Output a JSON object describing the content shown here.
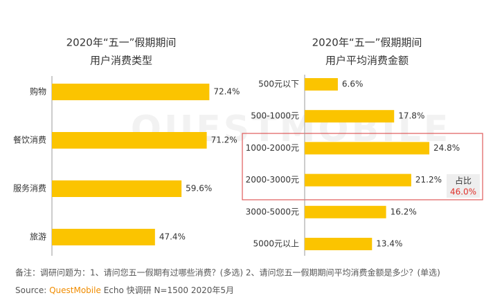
{
  "chart_data": [
    {
      "type": "bar",
      "title": "2020年“五一”假期期间",
      "subtitle": "用户消费类型",
      "categories": [
        "购物",
        "餐饮消费",
        "服务消费",
        "旅游"
      ],
      "values": [
        72.4,
        71.2,
        59.6,
        47.4
      ],
      "value_labels": [
        "72.4%",
        "71.2%",
        "59.6%",
        "47.4%"
      ],
      "color": "#fbc400"
    },
    {
      "type": "bar",
      "title": "2020年“五一”假期期间",
      "subtitle": "用户平均消费金额",
      "categories": [
        "500元以下",
        "500-1000元",
        "1000-2000元",
        "2000-3000元",
        "3000-5000元",
        "5000元以上"
      ],
      "values": [
        6.6,
        17.8,
        24.8,
        21.2,
        16.2,
        13.4
      ],
      "value_labels": [
        "6.6%",
        "17.8%",
        "24.8%",
        "21.2%",
        "16.2%",
        "13.4%"
      ],
      "color": "#fbc400",
      "annotation": {
        "title": "占比",
        "value": "46.0%"
      }
    }
  ],
  "watermark": "QUESTMOBILE",
  "footer": {
    "note": "备注：调研问题为：1、请问您五一假期有过哪些消费？(多选) 2、请问您五一假期期间平均消费金额是多少？(单选)",
    "source_prefix": "Source:",
    "source_brand": "QuestMobile",
    "source_rest": "Echo 快调研 N=1500 2020年5月"
  }
}
